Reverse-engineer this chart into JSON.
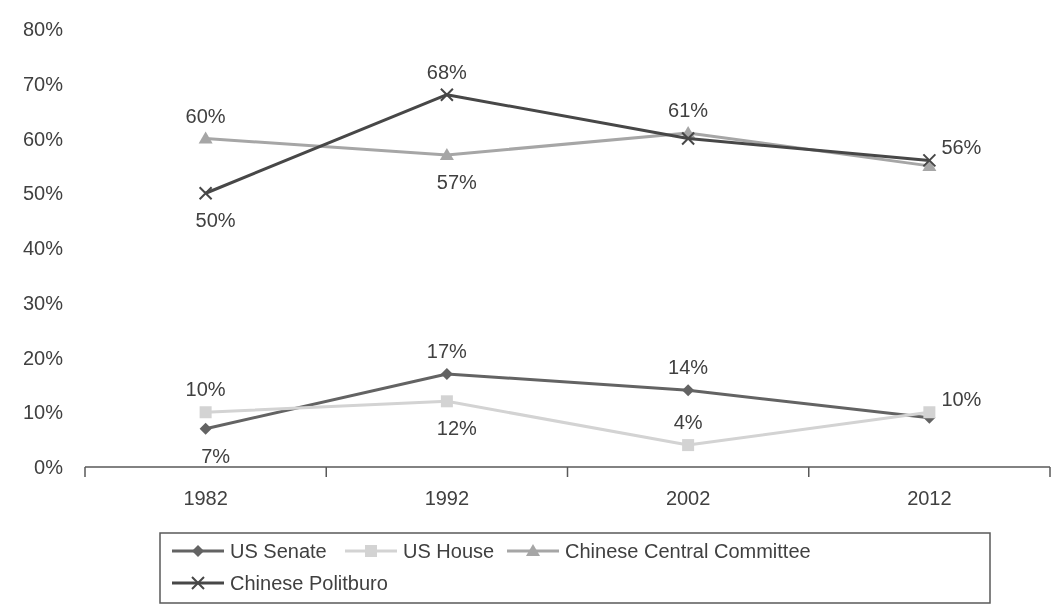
{
  "chart_data": {
    "type": "line",
    "categories": [
      "1982",
      "1992",
      "2002",
      "2012"
    ],
    "ylim": [
      0,
      80
    ],
    "yticks": [
      {
        "value": 0,
        "label": "0%"
      },
      {
        "value": 10,
        "label": "10%"
      },
      {
        "value": 20,
        "label": "20%"
      },
      {
        "value": 30,
        "label": "30%"
      },
      {
        "value": 40,
        "label": "40%"
      },
      {
        "value": 50,
        "label": "50%"
      },
      {
        "value": 60,
        "label": "60%"
      },
      {
        "value": 70,
        "label": "70%"
      },
      {
        "value": 80,
        "label": "80%"
      }
    ],
    "grid": false,
    "legend": "bottom",
    "line_style": "solid",
    "series": [
      {
        "name": "US Senate",
        "color": "#636363",
        "marker": "diamond",
        "values": [
          7,
          17,
          14,
          9
        ],
        "value_labels": [
          "7%",
          "17%",
          "14%",
          null
        ]
      },
      {
        "name": "US House",
        "color": "#d3d3d3",
        "marker": "square",
        "values": [
          10,
          12,
          4,
          10
        ],
        "value_labels": [
          "10%",
          "12%",
          "4%",
          "10%"
        ]
      },
      {
        "name": "Chinese Central Committee",
        "color": "#a6a6a6",
        "marker": "triangle",
        "values": [
          60,
          57,
          61,
          55
        ],
        "value_labels": [
          "60%",
          "57%",
          "61%",
          null
        ]
      },
      {
        "name": "Chinese Politburo",
        "color": "#474747",
        "marker": "cross",
        "values": [
          50,
          68,
          60,
          56
        ],
        "value_labels": [
          "50%",
          "68%",
          null,
          "56%"
        ]
      }
    ]
  }
}
